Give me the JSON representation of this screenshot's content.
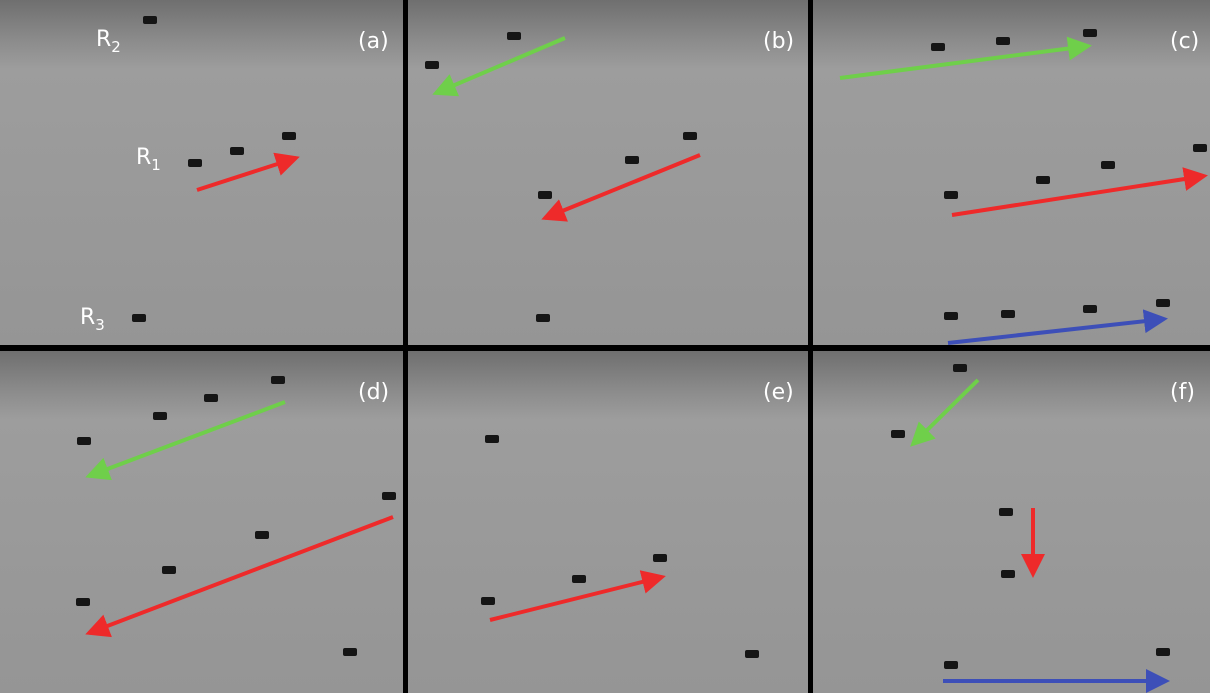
{
  "panels": [
    "(a)",
    "(b)",
    "(c)",
    "(d)",
    "(e)",
    "(f)"
  ],
  "robot_labels": [
    {
      "letter": "R",
      "subscript": "2"
    },
    {
      "letter": "R",
      "subscript": "1"
    },
    {
      "letter": "R",
      "subscript": "3"
    }
  ]
}
